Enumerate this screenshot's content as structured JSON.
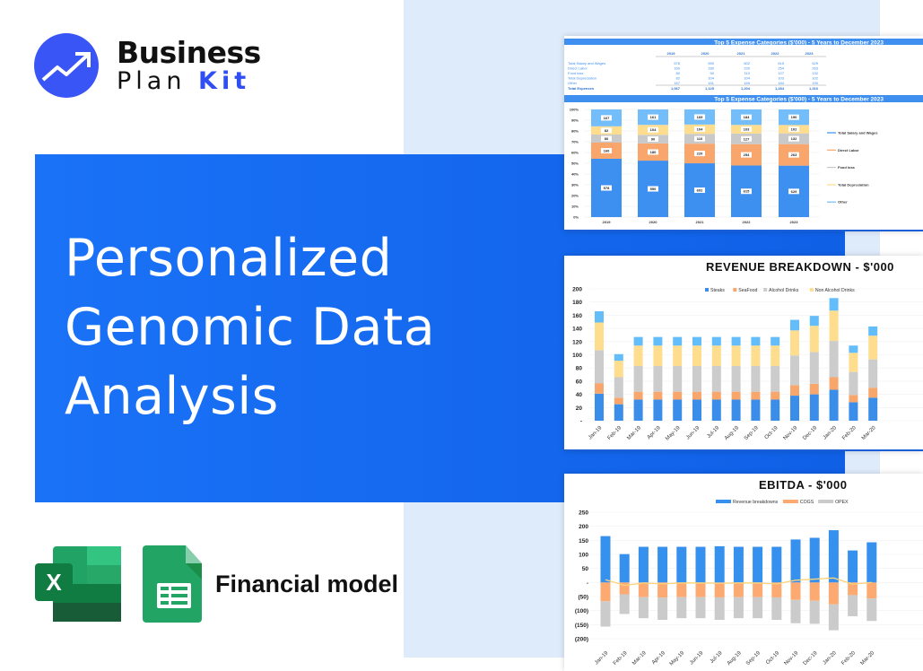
{
  "brand": {
    "line1": "Business",
    "line2a": "Plan",
    "line2b": "Kit",
    "color": "#3a55f5"
  },
  "hero": {
    "lines": [
      "Personalized",
      "Genomic Data",
      "Analysis"
    ],
    "color": "#1a72f7"
  },
  "footer": {
    "label": "Financial model",
    "icons": [
      "excel-icon",
      "google-sheets-icon"
    ]
  },
  "chart_data": [
    {
      "type": "table",
      "title": "Top 5 Expense Categories ($'000) - 5 Years to December 2023",
      "columns": [
        "2019",
        "2020",
        "2021",
        "2022",
        "2023"
      ],
      "rows": [
        {
          "label": "Total Salary and Wages",
          "values": [
            "578",
            "590",
            "602",
            "615",
            "629"
          ]
        },
        {
          "label": "Direct Labor",
          "values": [
            "160",
            "180",
            "220",
            "254",
            "263"
          ]
        },
        {
          "label": "Food loss",
          "values": [
            "80",
            "90",
            "110",
            "127",
            "132"
          ]
        },
        {
          "label": "Total Depreciation",
          "values": [
            "82",
            "104",
            "104",
            "103",
            "102"
          ]
        },
        {
          "label": "Other",
          "values": [
            "167",
            "161",
            "169",
            "184",
            "190"
          ]
        }
      ],
      "total": {
        "label": "Total Expenses",
        "values": [
          "1,067",
          "1,125",
          "1,204",
          "1,284",
          "1,316"
        ]
      }
    },
    {
      "type": "bar",
      "stacked": "percent",
      "title": "Top 5 Expense Categories ($'000) - 5 Years to December 2023",
      "categories": [
        "2019",
        "2020",
        "2021",
        "2022",
        "2023"
      ],
      "yticks": [
        "0%",
        "10%",
        "20%",
        "30%",
        "40%",
        "50%",
        "60%",
        "70%",
        "80%",
        "90%",
        "100%"
      ],
      "ylim": [
        0,
        100
      ],
      "legend": "right",
      "series": [
        {
          "name": "Total Salary and Wages",
          "color": "#3d8ff0",
          "values": [
            578,
            590,
            602,
            615,
            629
          ]
        },
        {
          "name": "Direct Labor",
          "color": "#f9a66c",
          "values": [
            160,
            180,
            220,
            254,
            263
          ]
        },
        {
          "name": "Food loss",
          "color": "#c9c9c9",
          "values": [
            80,
            90,
            110,
            127,
            132
          ]
        },
        {
          "name": "Total Depreciation",
          "color": "#fedd8e",
          "values": [
            82,
            104,
            104,
            103,
            102
          ]
        },
        {
          "name": "Other",
          "color": "#72bdfa",
          "values": [
            167,
            161,
            169,
            184,
            190
          ]
        }
      ]
    },
    {
      "type": "bar",
      "stacked": true,
      "title": "REVENUE BREAKDOWN - $'000",
      "categories": [
        "Jan-19",
        "Feb-19",
        "Mar-19",
        "Apr-19",
        "May-19",
        "Jun-19",
        "Jul-19",
        "Aug-19",
        "Sep-19",
        "Oct-19",
        "Nov-19",
        "Dec-19",
        "Jan-20",
        "Feb-20",
        "Mar-20"
      ],
      "yticks": [
        "-",
        "20",
        "40",
        "60",
        "80",
        "100",
        "120",
        "140",
        "160",
        "180",
        "200"
      ],
      "ylim": [
        0,
        200
      ],
      "legend": "top",
      "series": [
        {
          "name": "Steaks",
          "color": "#3a8eea",
          "values": [
            41,
            25,
            32,
            32,
            32,
            32,
            32,
            32,
            32,
            32,
            38,
            40,
            47,
            28,
            35
          ]
        },
        {
          "name": "SeaFood",
          "color": "#f9a66c",
          "values": [
            16,
            10,
            12,
            12,
            12,
            12,
            12,
            12,
            12,
            12,
            16,
            16,
            19,
            11,
            15
          ]
        },
        {
          "name": "Alcohol Drinks",
          "color": "#cccccc",
          "values": [
            50,
            31,
            39,
            39,
            39,
            39,
            39,
            39,
            39,
            39,
            45,
            48,
            55,
            35,
            43
          ]
        },
        {
          "name": "Non Alcohol Drinks",
          "color": "#fedd8e",
          "values": [
            42,
            25,
            31,
            31,
            31,
            31,
            31,
            31,
            31,
            31,
            38,
            40,
            46,
            29,
            36
          ]
        },
        {
          "color": "#62bdfa",
          "values": [
            17,
            10,
            13,
            13,
            13,
            13,
            13,
            13,
            13,
            13,
            16,
            15,
            19,
            11,
            14
          ]
        }
      ]
    },
    {
      "type": "bar",
      "stacked": true,
      "title": "EBITDA - $'000",
      "categories": [
        "Jan-19",
        "Feb-19",
        "Mar-19",
        "Apr-19",
        "May-19",
        "Jun-19",
        "Jul-19",
        "Aug-19",
        "Sep-19",
        "Oct-19",
        "Nov-19",
        "Dec-19",
        "Jan-20",
        "Feb-20",
        "Mar-20"
      ],
      "yticks": [
        "(200)",
        "(150)",
        "(100)",
        "(50)",
        "-",
        "50",
        "100",
        "150",
        "200",
        "250"
      ],
      "ylim": [
        -200,
        250
      ],
      "legend": "top",
      "series": [
        {
          "name": "Revenue breakdowns",
          "color": "#3590ee",
          "values": [
            165,
            101,
            127,
            127,
            127,
            127,
            129,
            127,
            127,
            127,
            153,
            159,
            186,
            114,
            143
          ]
        },
        {
          "name": "COGS",
          "color": "#fdaa72",
          "values": [
            -67,
            -42,
            -52,
            -54,
            -52,
            -52,
            -53,
            -52,
            -52,
            -53,
            -62,
            -65,
            -78,
            -45,
            -57
          ]
        },
        {
          "name": "OPEX",
          "color": "#cbcbcb",
          "values": [
            -90,
            -70,
            -75,
            -79,
            -75,
            -75,
            -80,
            -75,
            -75,
            -80,
            -83,
            -82,
            -92,
            -75,
            -80
          ]
        }
      ],
      "line": {
        "color": "#fcd27a",
        "values": [
          10,
          -10,
          -2,
          -5,
          -2,
          -2,
          -3,
          -2,
          -2,
          -5,
          8,
          12,
          16,
          -6,
          0
        ]
      }
    }
  ]
}
